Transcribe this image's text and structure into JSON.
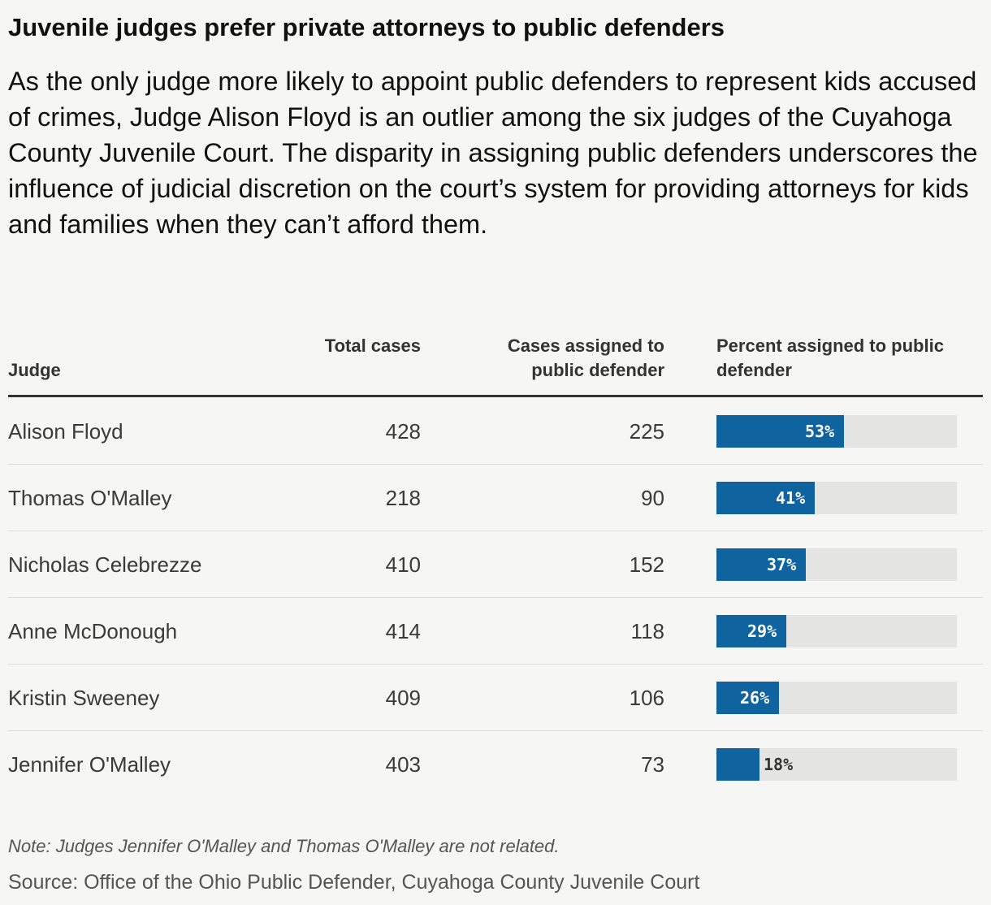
{
  "title": "Juvenile judges prefer private attorneys to public defenders",
  "subtitle": "As the only judge more likely to appoint public defenders to represent kids accused of crimes, Judge Alison Floyd is an outlier among the six judges of the Cuyahoga County Juvenile Court. The disparity in assigning public defenders underscores the influence of judicial discretion on the court’s system for providing attorneys for kids and families when they can’t afford them.",
  "columns": {
    "judge": "Judge",
    "total": "Total cases",
    "assigned": "Cases assigned to public defender",
    "percent": "Percent assigned to public defender"
  },
  "colors": {
    "bar": "#0f64a0",
    "track": "#e4e4e2"
  },
  "chart_data": {
    "type": "table",
    "columns": [
      "Judge",
      "Total cases",
      "Cases assigned to public defender",
      "Percent assigned to public defender"
    ],
    "rows": [
      {
        "judge": "Alison Floyd",
        "total": "428",
        "assigned": "225",
        "percent": 53,
        "percent_label": "53%"
      },
      {
        "judge": "Thomas O'Malley",
        "total": "218",
        "assigned": "90",
        "percent": 41,
        "percent_label": "41%"
      },
      {
        "judge": "Nicholas Celebrezze",
        "total": "410",
        "assigned": "152",
        "percent": 37,
        "percent_label": "37%"
      },
      {
        "judge": "Anne McDonough",
        "total": "414",
        "assigned": "118",
        "percent": 29,
        "percent_label": "29%"
      },
      {
        "judge": "Kristin Sweeney",
        "total": "409",
        "assigned": "106",
        "percent": 26,
        "percent_label": "26%"
      },
      {
        "judge": "Jennifer O'Malley",
        "total": "403",
        "assigned": "73",
        "percent": 18,
        "percent_label": "18%"
      }
    ]
  },
  "note": "Note: Judges Jennifer O'Malley and Thomas O'Malley are not related.",
  "source": "Source: Office of the Ohio Public Defender, Cuyahoga County Juvenile Court"
}
